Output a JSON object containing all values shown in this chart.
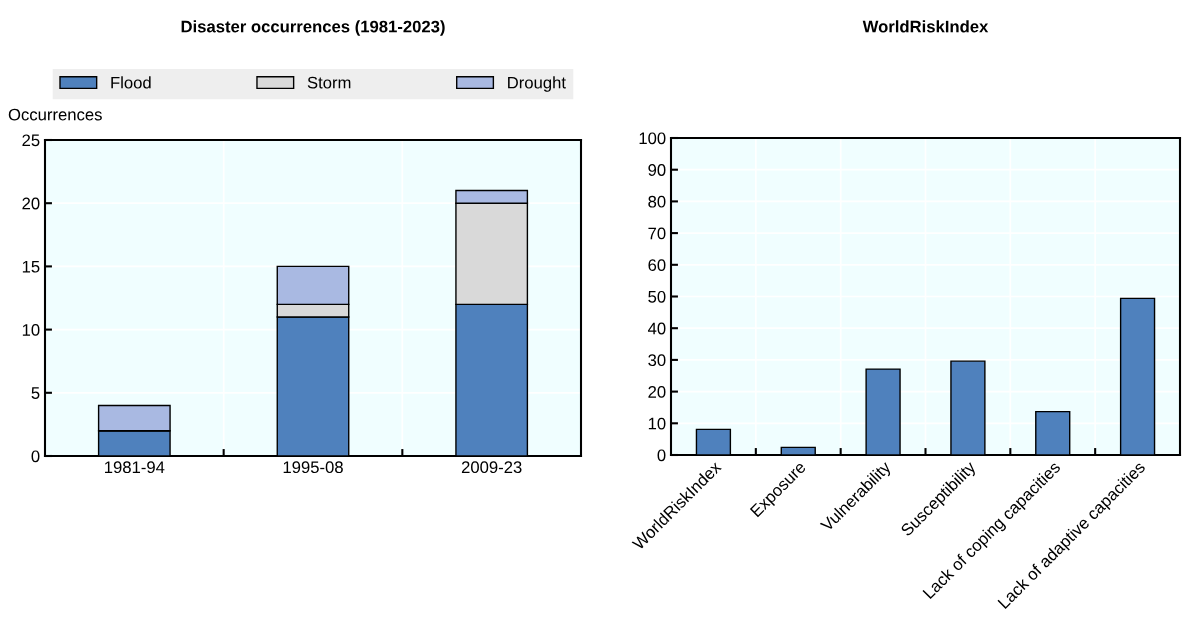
{
  "chart_data": [
    {
      "type": "bar",
      "title": "Disaster occurrences (1981-2023)",
      "ylabel": "Occurrences",
      "categories": [
        "1981-94",
        "1995-08",
        "2009-23"
      ],
      "stacked": true,
      "ylim": [
        0,
        25
      ],
      "yticks": [
        0,
        5,
        10,
        15,
        20,
        25
      ],
      "grid": true,
      "legend": "top",
      "series": [
        {
          "name": "Flood",
          "color": "#4f81bd",
          "values": [
            2,
            11,
            12
          ]
        },
        {
          "name": "Storm",
          "color": "#d9d9d9",
          "values": [
            0,
            1,
            8
          ]
        },
        {
          "name": "Drought",
          "color": "#a9b9e2",
          "values": [
            2,
            3,
            1
          ]
        }
      ]
    },
    {
      "type": "bar",
      "title": "WorldRiskIndex",
      "categories": [
        "WorldRiskIndex",
        "Exposure",
        "Vulnerability",
        "Susceptibility",
        "Lack of coping capacities",
        "Lack of adaptive capacities"
      ],
      "ylim": [
        0,
        100
      ],
      "yticks": [
        0,
        10,
        20,
        30,
        40,
        50,
        60,
        70,
        80,
        90,
        100
      ],
      "grid": true,
      "series": [
        {
          "color": "#4f81bd",
          "values": [
            8.1,
            2.4,
            27.1,
            29.6,
            13.7,
            49.4
          ]
        }
      ]
    }
  ]
}
